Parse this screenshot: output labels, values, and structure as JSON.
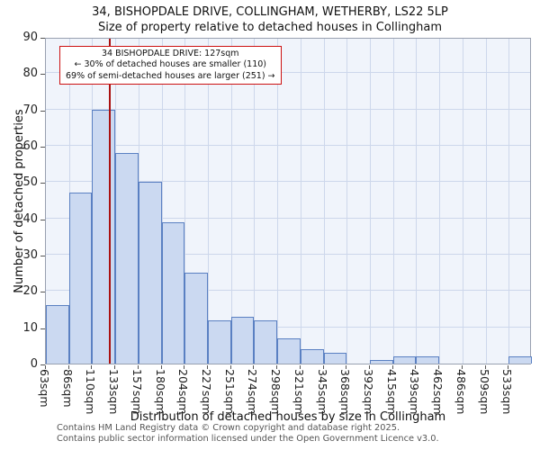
{
  "chart_data": {
    "type": "bar",
    "title": "34, BISHOPDALE DRIVE, COLLINGHAM, WETHERBY, LS22 5LP",
    "subtitle": "Size of property relative to detached houses in Collingham",
    "xlabel": "Distribution of detached houses by size in Collingham",
    "ylabel": "Number of detached properties",
    "categories": [
      "63sqm",
      "86sqm",
      "110sqm",
      "133sqm",
      "157sqm",
      "180sqm",
      "204sqm",
      "227sqm",
      "251sqm",
      "274sqm",
      "298sqm",
      "321sqm",
      "345sqm",
      "368sqm",
      "392sqm",
      "415sqm",
      "439sqm",
      "462sqm",
      "486sqm",
      "509sqm",
      "533sqm"
    ],
    "values": [
      16,
      47,
      70,
      58,
      50,
      39,
      25,
      12,
      13,
      12,
      7,
      4,
      3,
      0,
      1,
      2,
      2,
      0,
      0,
      0,
      2
    ],
    "ylim": [
      0,
      90
    ],
    "yticks": [
      0,
      10,
      20,
      30,
      40,
      50,
      60,
      70,
      80,
      90
    ],
    "grid": true,
    "legend": "none",
    "marker": {
      "value_sqm": 127,
      "x_start": 63,
      "bin_size": 23.5,
      "color": "#aa1111"
    },
    "colors": {
      "bar_fill": "#cbd9f1",
      "bar_border": "#5a80c2",
      "plot_bg": "#f0f4fb",
      "grid": "#cdd7eb",
      "marker": "#aa1111",
      "annotation_border": "#cc1111"
    }
  },
  "annotation": {
    "line1": "34 BISHOPDALE DRIVE: 127sqm",
    "line2": "← 30% of detached houses are smaller (110)",
    "line3": "69% of semi-detached houses are larger (251) →"
  },
  "footer": {
    "line1": "Contains HM Land Registry data © Crown copyright and database right 2025.",
    "line2": "Contains public sector information licensed under the Open Government Licence v3.0."
  }
}
